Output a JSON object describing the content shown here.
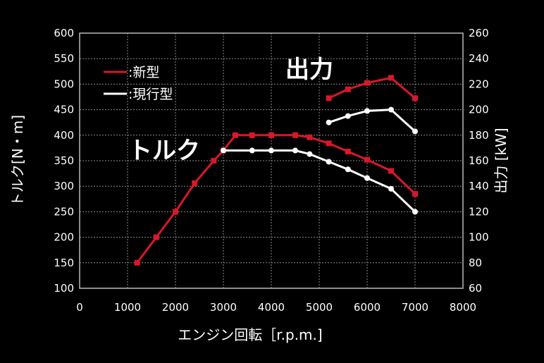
{
  "chart_data": {
    "type": "line",
    "xlabel": "エンジン回転［r.p.m.]",
    "ylabel_left": "トルク[N・m]",
    "ylabel_right": "出力 [kW]",
    "xlim": [
      0,
      8000
    ],
    "ylim_left": [
      100,
      600
    ],
    "ylim_right": [
      60,
      260
    ],
    "x_ticks": [
      "0",
      "1000",
      "2000",
      "3000",
      "4000",
      "5000",
      "6000",
      "7000",
      "8000"
    ],
    "y_left_ticks": [
      "100",
      "150",
      "200",
      "250",
      "300",
      "350",
      "400",
      "450",
      "500",
      "550",
      "600"
    ],
    "y_right_ticks": [
      "60",
      "80",
      "100",
      "120",
      "140",
      "160",
      "180",
      "200",
      "220",
      "240",
      "260"
    ],
    "grid": true,
    "legend_position": "top-left",
    "legend": [
      {
        "label": ":新型",
        "color": "#d7182a"
      },
      {
        "label": ":現行型",
        "color": "#ffffff"
      }
    ],
    "annotations": {
      "torque": "トルク",
      "power": "出力"
    },
    "series": [
      {
        "name": "新型 トルク",
        "axis": "left",
        "color": "#d7182a",
        "marker": "square",
        "x": [
          1200,
          1600,
          2000,
          2400,
          2800,
          3000,
          3250,
          3600,
          4000,
          4500,
          4800,
          5200,
          5600,
          6000,
          6500,
          7000
        ],
        "values": [
          150,
          200,
          250,
          306,
          350,
          370,
          400,
          400,
          400,
          400,
          396,
          384,
          368,
          352,
          330,
          285
        ]
      },
      {
        "name": "現行型 トルク",
        "axis": "left",
        "color": "#ffffff",
        "marker": "circle",
        "x": [
          3000,
          3600,
          4000,
          4500,
          4800,
          5200,
          5600,
          6000,
          6500,
          7000
        ],
        "values": [
          370,
          370,
          370,
          370,
          363,
          348,
          333,
          316,
          295,
          250
        ]
      },
      {
        "name": "新型 出力",
        "axis": "right",
        "color": "#d7182a",
        "marker": "square",
        "x": [
          5200,
          5600,
          6000,
          6500,
          7000
        ],
        "values": [
          209,
          216,
          221,
          225,
          209
        ]
      },
      {
        "name": "現行型 出力",
        "axis": "right",
        "color": "#ffffff",
        "marker": "circle",
        "x": [
          5200,
          5600,
          6000,
          6500,
          7000
        ],
        "values": [
          190,
          195,
          199,
          200,
          183
        ]
      }
    ]
  }
}
